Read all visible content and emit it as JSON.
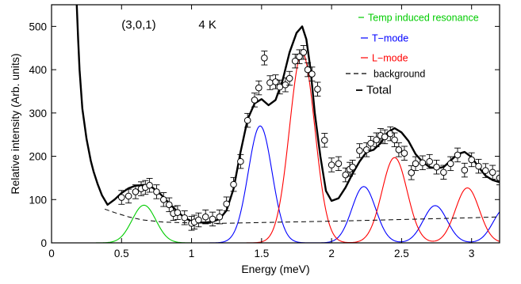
{
  "chart_data": {
    "type": "line",
    "xlabel": "Energy (meV)",
    "ylabel": "Relative intensity (Arb. units)",
    "xlim": [
      0,
      3.2
    ],
    "ylim": [
      0,
      550
    ],
    "x_ticks": [
      0,
      0.5,
      1,
      1.5,
      2,
      2.5,
      3
    ],
    "x_tick_labels": [
      "0",
      "0.5",
      "1",
      "1.5",
      "2",
      "2.5",
      "3"
    ],
    "y_ticks": [
      0,
      100,
      200,
      300,
      400,
      500
    ],
    "y_tick_labels": [
      "0",
      "100",
      "200",
      "300",
      "400",
      "500"
    ],
    "grid": false,
    "annotations": [
      {
        "text": "(3,0,1)",
        "x": 0.5,
        "y": 495
      },
      {
        "text": "4 K",
        "x": 1.05,
        "y": 495
      }
    ],
    "legend": {
      "placement": "top-right",
      "entries": [
        {
          "label": "Temp induced resonance",
          "color": "#00cc00",
          "style": "solid"
        },
        {
          "label": "T−mode",
          "color": "#0000ff",
          "style": "solid"
        },
        {
          "label": "L−mode",
          "color": "#ff0000",
          "style": "solid"
        },
        {
          "label": "background",
          "color": "#000000",
          "style": "dashed"
        },
        {
          "label": "Total",
          "color": "#000000",
          "style": "solid-thick"
        }
      ]
    },
    "series": [
      {
        "name": "Temp induced resonance",
        "color": "#00cc00",
        "style": "solid",
        "kind": "gaussians",
        "peaks": [
          {
            "center": 0.66,
            "amplitude": 87,
            "sigma": 0.085
          }
        ],
        "x_range": [
          0,
          3.2
        ]
      },
      {
        "name": "T−mode",
        "color": "#0000ff",
        "style": "solid",
        "kind": "gaussians",
        "peaks": [
          {
            "center": 1.49,
            "amplitude": 270,
            "sigma": 0.085
          },
          {
            "center": 2.23,
            "amplitude": 130,
            "sigma": 0.085
          },
          {
            "center": 2.74,
            "amplitude": 86,
            "sigma": 0.085
          },
          {
            "center": 3.24,
            "amplitude": 80,
            "sigma": 0.085
          }
        ],
        "x_range": [
          0,
          3.2
        ]
      },
      {
        "name": "L−mode",
        "color": "#ff0000",
        "style": "solid",
        "kind": "gaussians",
        "peaks": [
          {
            "center": 1.79,
            "amplitude": 440,
            "sigma": 0.09
          },
          {
            "center": 2.45,
            "amplitude": 197,
            "sigma": 0.09
          },
          {
            "center": 2.97,
            "amplitude": 127,
            "sigma": 0.085
          }
        ],
        "x_range": [
          0,
          3.2
        ]
      },
      {
        "name": "background",
        "color": "#000000",
        "style": "dashed",
        "kind": "line",
        "x": [
          0.38,
          0.45,
          0.55,
          0.65,
          0.8,
          1.0,
          1.2,
          1.5,
          2.0,
          2.5,
          3.0,
          3.2
        ],
        "y": [
          78,
          70,
          60,
          53,
          48,
          46,
          45,
          47,
          50,
          54,
          58,
          60
        ]
      },
      {
        "name": "Total",
        "color": "#000000",
        "style": "solid-thick",
        "kind": "line",
        "x": [
          0.18,
          0.19,
          0.2,
          0.22,
          0.25,
          0.28,
          0.3,
          0.33,
          0.36,
          0.4,
          0.45,
          0.5,
          0.55,
          0.6,
          0.66,
          0.72,
          0.78,
          0.85,
          0.9,
          0.95,
          1.0,
          1.05,
          1.1,
          1.15,
          1.2,
          1.25,
          1.3,
          1.35,
          1.4,
          1.45,
          1.5,
          1.55,
          1.6,
          1.65,
          1.7,
          1.75,
          1.79,
          1.82,
          1.85,
          1.88,
          1.92,
          1.96,
          2.0,
          2.05,
          2.1,
          2.15,
          2.2,
          2.25,
          2.3,
          2.35,
          2.4,
          2.45,
          2.5,
          2.55,
          2.6,
          2.65,
          2.7,
          2.75,
          2.8,
          2.85,
          2.9,
          2.95,
          3.0,
          3.05,
          3.1,
          3.15,
          3.2
        ],
        "y": [
          550,
          470,
          400,
          310,
          240,
          190,
          165,
          135,
          110,
          88,
          100,
          115,
          126,
          132,
          134,
          128,
          112,
          88,
          72,
          58,
          50,
          47,
          47,
          49,
          55,
          75,
          125,
          210,
          285,
          322,
          332,
          318,
          330,
          375,
          440,
          485,
          500,
          470,
          400,
          300,
          200,
          120,
          97,
          103,
          128,
          160,
          188,
          210,
          215,
          230,
          255,
          265,
          255,
          235,
          205,
          187,
          175,
          172,
          175,
          190,
          205,
          210,
          198,
          175,
          155,
          145,
          140
        ]
      },
      {
        "name": "data",
        "kind": "points",
        "x": [
          0.5,
          0.55,
          0.6,
          0.64,
          0.67,
          0.7,
          0.75,
          0.8,
          0.84,
          0.87,
          0.9,
          0.95,
          1.0,
          1.02,
          1.05,
          1.1,
          1.15,
          1.2,
          1.25,
          1.3,
          1.35,
          1.4,
          1.45,
          1.48,
          1.52,
          1.56,
          1.6,
          1.63,
          1.67,
          1.7,
          1.74,
          1.77,
          1.8,
          1.83,
          1.86,
          1.9,
          1.95,
          2.0,
          2.05,
          2.1,
          2.13,
          2.15,
          2.2,
          2.25,
          2.28,
          2.32,
          2.35,
          2.38,
          2.42,
          2.45,
          2.48,
          2.52,
          2.57,
          2.6,
          2.65,
          2.7,
          2.75,
          2.8,
          2.85,
          2.9,
          2.95,
          3.0,
          3.05,
          3.1,
          3.15,
          3.2
        ],
        "y": [
          105,
          108,
          118,
          125,
          128,
          133,
          118,
          100,
          88,
          68,
          70,
          58,
          45,
          48,
          53,
          60,
          55,
          60,
          90,
          135,
          188,
          283,
          330,
          358,
          427,
          370,
          372,
          360,
          365,
          380,
          420,
          430,
          440,
          400,
          390,
          355,
          237,
          180,
          183,
          157,
          170,
          175,
          213,
          215,
          230,
          238,
          248,
          245,
          252,
          238,
          215,
          207,
          162,
          183,
          185,
          188,
          175,
          163,
          183,
          203,
          168,
          192,
          177,
          167,
          163,
          150
        ],
        "yerr": 16
      }
    ]
  }
}
